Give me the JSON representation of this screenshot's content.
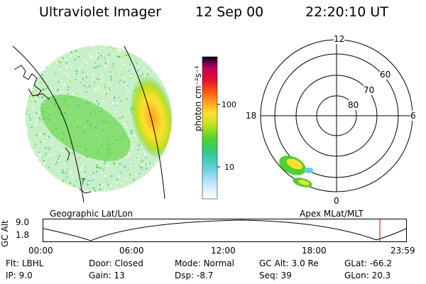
{
  "header": {
    "instrument": "Ultraviolet Imager",
    "date": "12 Sep 00",
    "time": "22:20:10 UT"
  },
  "colorbar": {
    "unit_label": "photon cm⁻²s⁻¹",
    "ticks": [
      "100",
      "10"
    ],
    "colors": [
      "#ffffff",
      "#c8e8ff",
      "#60d0e0",
      "#30c890",
      "#50d030",
      "#c0e020",
      "#ffe030",
      "#ffa020",
      "#ff5010",
      "#e01030",
      "#c00060",
      "#500040",
      "#000000"
    ]
  },
  "left_panel": {
    "caption": "Geographic Lat/Lon",
    "map_mark": "?"
  },
  "right_panel": {
    "caption": "Apex MLat/MLT",
    "mlt_labels": {
      "top": "12",
      "left": "18",
      "right": "6",
      "bottom": "0"
    },
    "lat_labels": [
      "60",
      "70",
      "80"
    ]
  },
  "timeline": {
    "ylabel": "GC Alt",
    "yticks": [
      "9.0",
      "1.8"
    ],
    "xticks": [
      "00:00",
      "06:00",
      "12:00",
      "18:00",
      "23:59"
    ],
    "marker_time": "22:20",
    "marker_color": "#e00000"
  },
  "footer": {
    "rows": [
      [
        {
          "k": "Flt:",
          "v": "LBHL"
        },
        {
          "k": "Door:",
          "v": "Closed"
        },
        {
          "k": "Mode:",
          "v": "Normal"
        },
        {
          "k": "GC Alt:",
          "v": "3.0 Re"
        },
        {
          "k": "GLat:",
          "v": "-66.2"
        }
      ],
      [
        {
          "k": "IP:",
          "v": "9.0"
        },
        {
          "k": "Gain:",
          "v": "13"
        },
        {
          "k": "Dsp:",
          "v": "-8.7"
        },
        {
          "k": "Seq:",
          "v": "39"
        },
        {
          "k": "GLon:",
          "v": "20.3"
        }
      ]
    ]
  }
}
